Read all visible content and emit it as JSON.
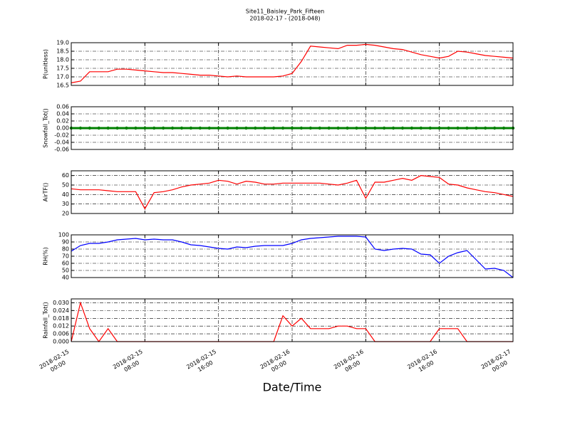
{
  "chart_data": [
    {
      "type": "line",
      "title": "Site11_Baisley_Park_Fifteen",
      "subtitle": "2018-02-17 - (2018-048)",
      "ylabel": "P(unitless)",
      "x": [
        0,
        1,
        2,
        3,
        4,
        5,
        6,
        7,
        8,
        9,
        10,
        11,
        12,
        13,
        14,
        15,
        16,
        17,
        18,
        19,
        20,
        21,
        22,
        23,
        24,
        25,
        26,
        27,
        28,
        29,
        30,
        31,
        32,
        33,
        34,
        35,
        36,
        37,
        38,
        39,
        40,
        41,
        42,
        43,
        44,
        45,
        46,
        47,
        48
      ],
      "series": [
        {
          "color": "#ff0000",
          "values": [
            16.65,
            16.75,
            17.3,
            17.3,
            17.3,
            17.45,
            17.45,
            17.4,
            17.35,
            17.3,
            17.25,
            17.25,
            17.2,
            17.15,
            17.1,
            17.1,
            17.05,
            17.0,
            17.05,
            17.0,
            17.0,
            17.0,
            17.0,
            17.05,
            17.2,
            17.9,
            18.8,
            18.75,
            18.7,
            18.65,
            18.85,
            18.85,
            18.9,
            18.85,
            18.75,
            18.65,
            18.6,
            18.45,
            18.3,
            18.2,
            18.1,
            18.2,
            18.5,
            18.45,
            18.35,
            18.25,
            18.2,
            18.15,
            18.1
          ]
        }
      ],
      "xlim": [
        0,
        48
      ],
      "xticks": [
        0,
        8,
        16,
        24,
        32,
        40,
        48
      ],
      "ylim": [
        16.5,
        19.0
      ],
      "yticks": [
        16.5,
        {
          "value": 17,
          "label": "17.0"
        },
        17.5,
        {
          "value": 18,
          "label": "18.0"
        },
        18.5,
        {
          "value": 19,
          "label": "19.0"
        }
      ],
      "grid": true
    },
    {
      "type": "line",
      "ylabel": "Snowfall_Tot()",
      "markers": true,
      "x": [
        0,
        1,
        2,
        3,
        4,
        5,
        6,
        7,
        8,
        9,
        10,
        11,
        12,
        13,
        14,
        15,
        16,
        17,
        18,
        19,
        20,
        21,
        22,
        23,
        24,
        25,
        26,
        27,
        28,
        29,
        30,
        31,
        32,
        33,
        34,
        35,
        36,
        37,
        38,
        39,
        40,
        41,
        42,
        43,
        44,
        45,
        46,
        47,
        48
      ],
      "series": [
        {
          "color": "#008000",
          "values": [
            0,
            0,
            0,
            0,
            0,
            0,
            0,
            0,
            0,
            0,
            0,
            0,
            0,
            0,
            0,
            0,
            0,
            0,
            0,
            0,
            0,
            0,
            0,
            0,
            0,
            0,
            0,
            0,
            0,
            0,
            0,
            0,
            0,
            0,
            0,
            0,
            0,
            0,
            0,
            0,
            0,
            0,
            0,
            0,
            0,
            0,
            0,
            0,
            0
          ]
        }
      ],
      "xlim": [
        0,
        48
      ],
      "xticks": [
        0,
        8,
        16,
        24,
        32,
        40,
        48
      ],
      "ylim": [
        -0.06,
        0.06
      ],
      "yticks": [
        -0.06,
        -0.04,
        -0.02,
        {
          "value": 0,
          "label": "0.00"
        },
        0.02,
        0.04,
        0.06
      ],
      "grid": true
    },
    {
      "type": "line",
      "ylabel": "AirTF()",
      "x": [
        0,
        1,
        2,
        3,
        4,
        5,
        6,
        7,
        8,
        9,
        10,
        11,
        12,
        13,
        14,
        15,
        16,
        17,
        18,
        19,
        20,
        21,
        22,
        23,
        24,
        25,
        26,
        27,
        28,
        29,
        30,
        31,
        32,
        33,
        34,
        35,
        36,
        37,
        38,
        39,
        40,
        41,
        42,
        43,
        44,
        45,
        46,
        47,
        48
      ],
      "series": [
        {
          "color": "#ff0000",
          "values": [
            46,
            45,
            45,
            45,
            44,
            43,
            43,
            43,
            25,
            42,
            43,
            45,
            48,
            50,
            51,
            52,
            55,
            54,
            51,
            54,
            53,
            51,
            51,
            52,
            52,
            52,
            52,
            52,
            51,
            50,
            52,
            55,
            36,
            53,
            53,
            55,
            57,
            55,
            60,
            59,
            58,
            51,
            50,
            47,
            45,
            43,
            42,
            40,
            38
          ]
        }
      ],
      "xlim": [
        0,
        48
      ],
      "xticks": [
        0,
        8,
        16,
        24,
        32,
        40,
        48
      ],
      "ylim": [
        20,
        65
      ],
      "yticks": [
        20,
        30,
        40,
        50,
        60
      ],
      "grid": true
    },
    {
      "type": "line",
      "ylabel": "RH(%)",
      "x": [
        0,
        1,
        2,
        3,
        4,
        5,
        6,
        7,
        8,
        9,
        10,
        11,
        12,
        13,
        14,
        15,
        16,
        17,
        18,
        19,
        20,
        21,
        22,
        23,
        24,
        25,
        26,
        27,
        28,
        29,
        30,
        31,
        32,
        33,
        34,
        35,
        36,
        37,
        38,
        39,
        40,
        41,
        42,
        43,
        44,
        45,
        46,
        47,
        48
      ],
      "series": [
        {
          "color": "#0000ff",
          "values": [
            77,
            85,
            88,
            88,
            90,
            93,
            94,
            95,
            93,
            94,
            93,
            93,
            90,
            86,
            85,
            83,
            81,
            80,
            83,
            82,
            84,
            85,
            85,
            85,
            88,
            93,
            95,
            96,
            97,
            98,
            98,
            98,
            97,
            80,
            78,
            80,
            81,
            80,
            73,
            72,
            60,
            70,
            75,
            78,
            65,
            52,
            53,
            50,
            40
          ]
        }
      ],
      "xlim": [
        0,
        48
      ],
      "xticks": [
        0,
        8,
        16,
        24,
        32,
        40,
        48
      ],
      "ylim": [
        40,
        100
      ],
      "yticks": [
        40,
        50,
        60,
        70,
        80,
        90,
        100
      ],
      "grid": true
    },
    {
      "type": "line",
      "ylabel": "Rainfall_Tot()",
      "xlabel": "Date/Time",
      "x": [
        0,
        1,
        2,
        3,
        4,
        5,
        6,
        7,
        8,
        9,
        10,
        11,
        12,
        13,
        14,
        15,
        16,
        17,
        18,
        19,
        20,
        21,
        22,
        23,
        24,
        25,
        26,
        27,
        28,
        29,
        30,
        31,
        32,
        33,
        34,
        35,
        36,
        37,
        38,
        39,
        40,
        41,
        42,
        43,
        44,
        45,
        46,
        47,
        48
      ],
      "series": [
        {
          "color": "#ff0000",
          "values": [
            0,
            0.03,
            0.01,
            0,
            0.01,
            0,
            0,
            0,
            0,
            0,
            0,
            0,
            0,
            0,
            0,
            0,
            0,
            0,
            0,
            0,
            0,
            0,
            0,
            0.02,
            0.012,
            0.018,
            0.01,
            0.01,
            0.01,
            0.012,
            0.012,
            0.01,
            0.01,
            0,
            0,
            0,
            0,
            0,
            0,
            0,
            0.01,
            0.01,
            0.01,
            0,
            0,
            0,
            0,
            0,
            0
          ]
        }
      ],
      "xlim": [
        0,
        48
      ],
      "xticks": [
        {
          "value": 0,
          "label": [
            "2018-02-15",
            "00:00"
          ]
        },
        {
          "value": 8,
          "label": [
            "2018-02-15",
            "08:00"
          ]
        },
        {
          "value": 16,
          "label": [
            "2018-02-15",
            "16:00"
          ]
        },
        {
          "value": 24,
          "label": [
            "2018-02-16",
            "00:00"
          ]
        },
        {
          "value": 32,
          "label": [
            "2018-02-16",
            "08:00"
          ]
        },
        {
          "value": 40,
          "label": [
            "2018-02-16",
            "16:00"
          ]
        },
        {
          "value": 48,
          "label": [
            "2018-02-17",
            "00:00"
          ]
        }
      ],
      "ylim": [
        0,
        0.033
      ],
      "yticks": [
        {
          "value": 0,
          "label": "0.000"
        },
        0.006,
        0.012,
        0.018,
        0.024,
        {
          "value": 0.03,
          "label": "0.030"
        }
      ],
      "grid": true
    }
  ]
}
